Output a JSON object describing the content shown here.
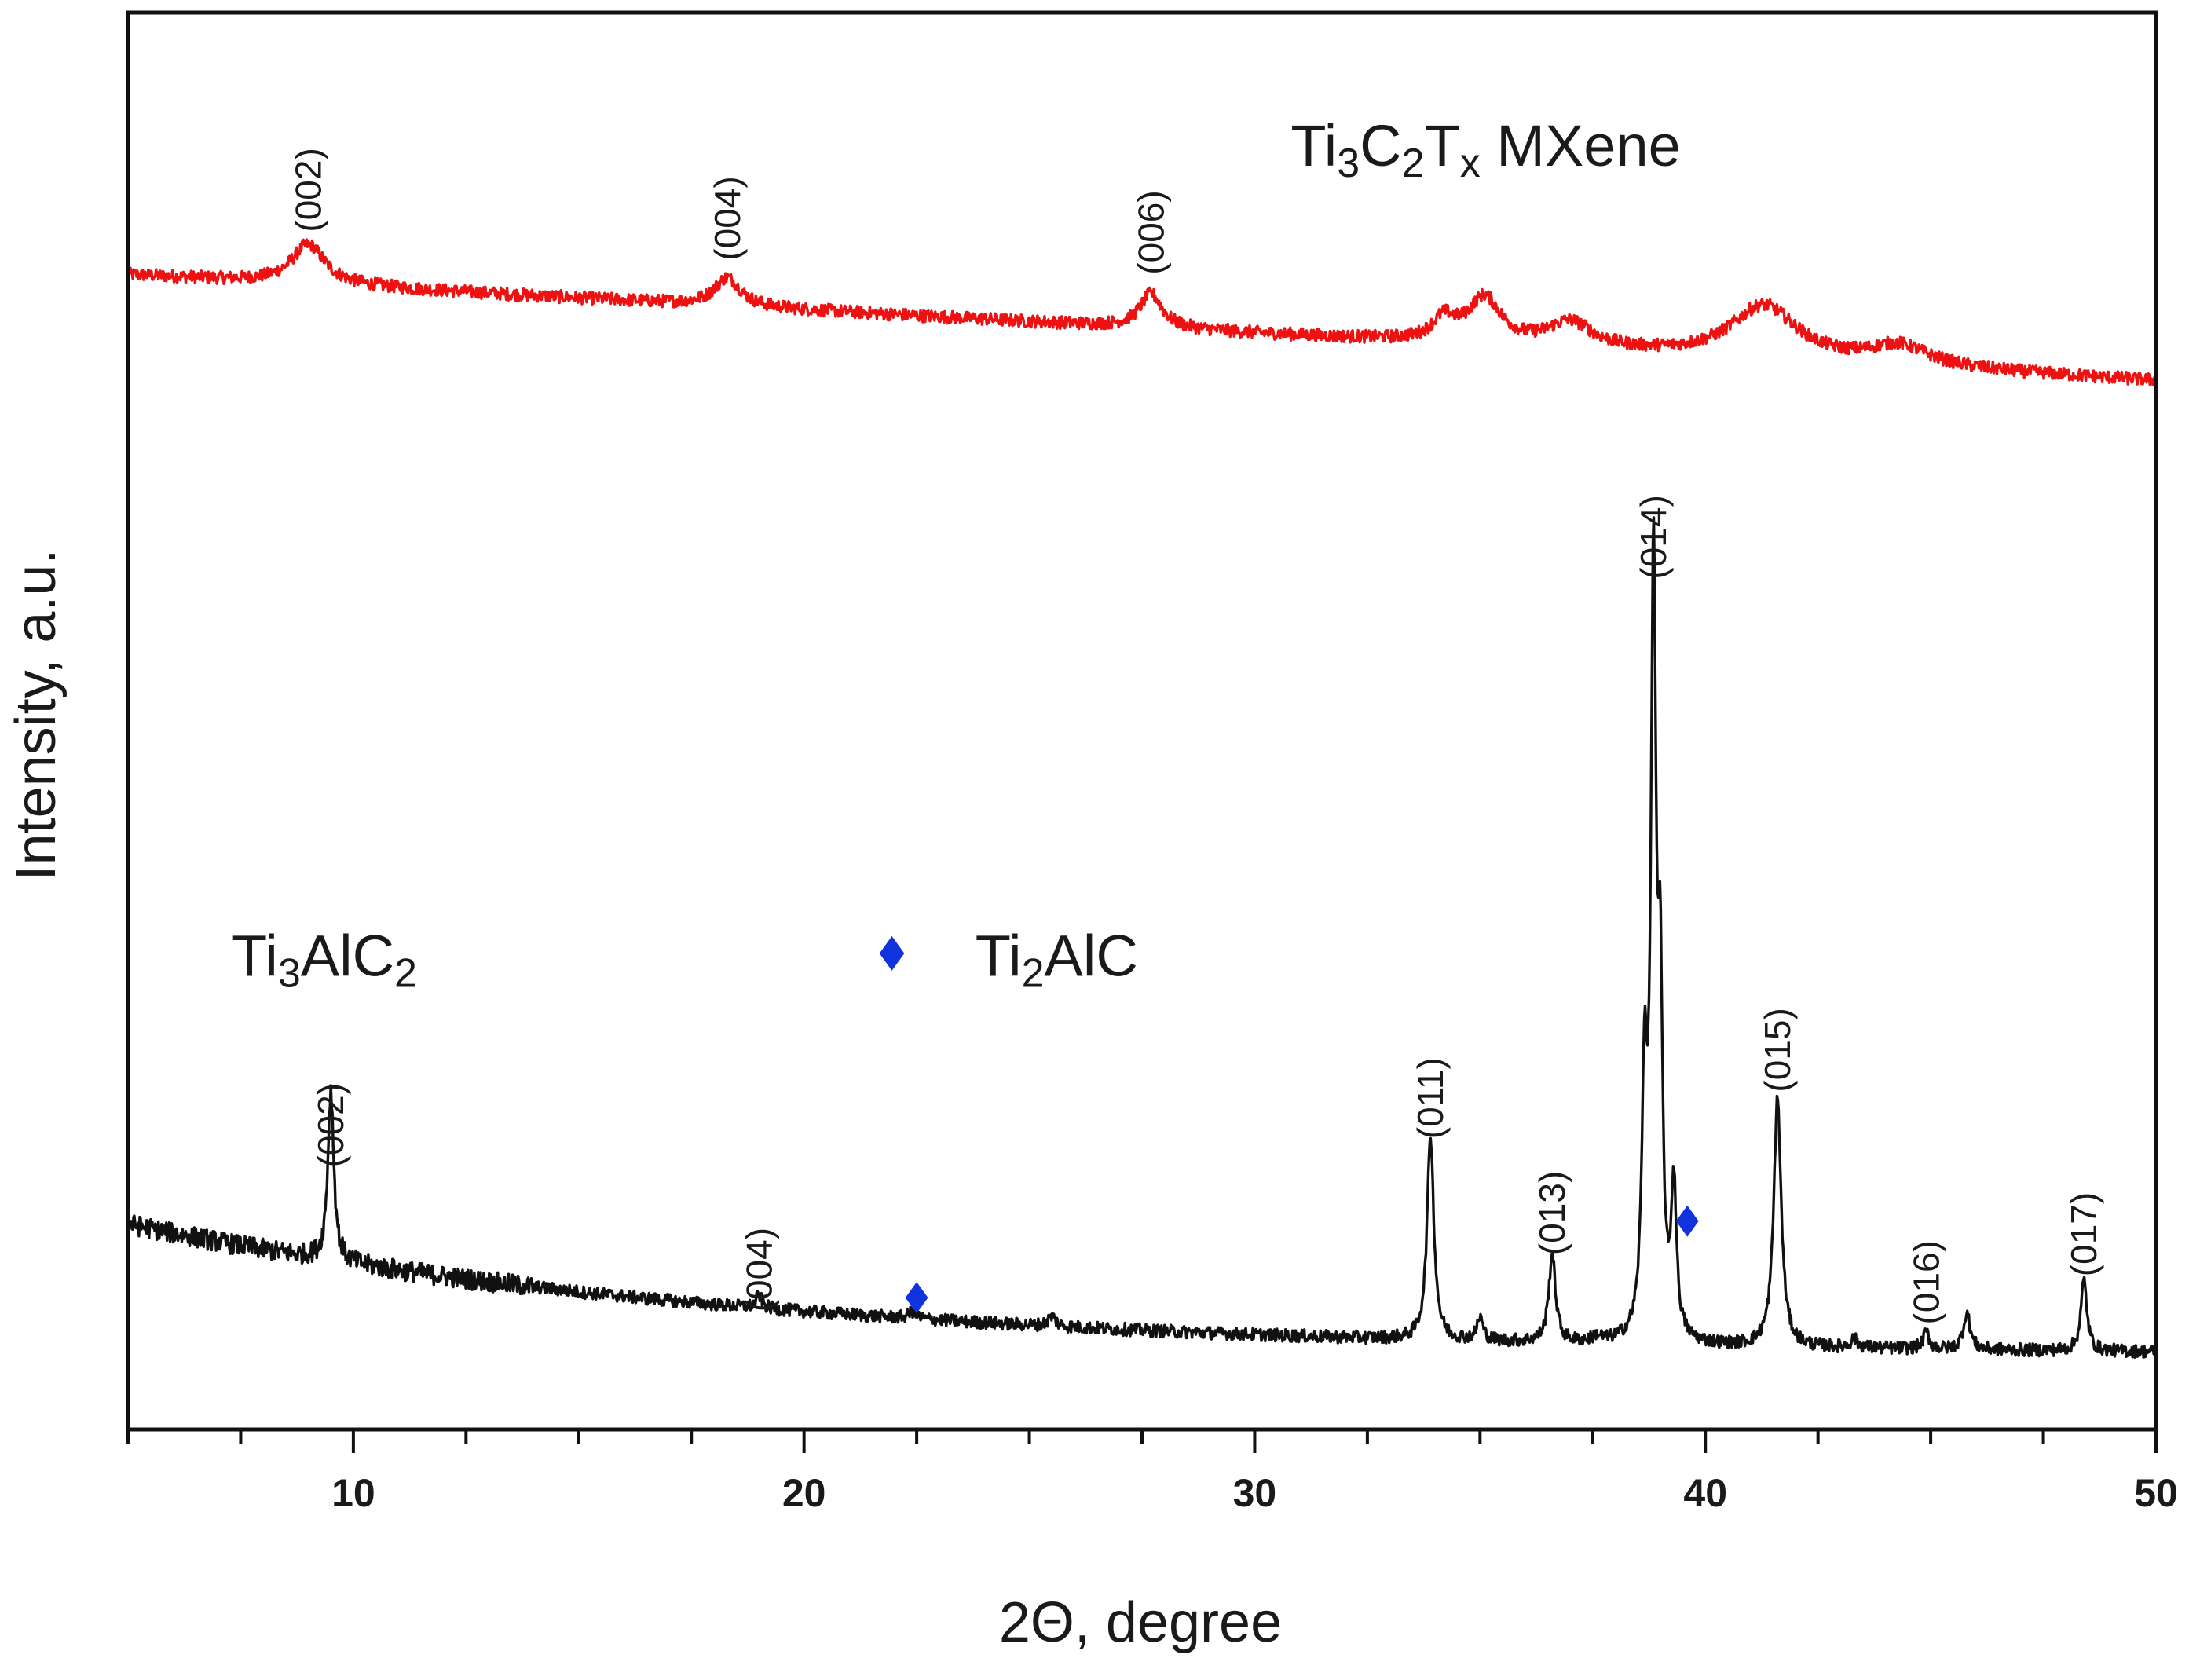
{
  "chart_data": {
    "type": "line",
    "xlabel": "2Θ, degree",
    "ylabel": "Intensity, a.u.",
    "xlim": [
      5,
      50
    ],
    "ylim": [
      0,
      100
    ],
    "xticks": [
      10,
      20,
      30,
      40,
      50
    ],
    "yticks_shown": false,
    "grid": false,
    "colors": {
      "mxene": "#ee1111",
      "max": "#111111",
      "marker": "#1133dd",
      "axis": "#111111"
    },
    "series": [
      {
        "name": "Ti3C2Tx MXene",
        "label_parts": [
          [
            "Ti",
            ""
          ],
          [
            "3",
            "sub"
          ],
          [
            "C",
            ""
          ],
          [
            "2",
            "sub"
          ],
          [
            "T",
            ""
          ],
          [
            "x",
            "sub"
          ],
          [
            "  MXene",
            ""
          ]
        ],
        "color": "#ee1111",
        "baseline": {
          "start": 81.5,
          "end": 74.0,
          "curvature": 2.8
        },
        "noise": 0.45,
        "peaks": [
          {
            "x": 9.0,
            "height": 2.8,
            "width": 0.45
          },
          {
            "x": 18.3,
            "height": 2.0,
            "width": 0.35
          },
          {
            "x": 27.7,
            "height": 2.4,
            "width": 0.3
          },
          {
            "x": 34.2,
            "height": 1.5,
            "width": 0.3
          },
          {
            "x": 35.1,
            "height": 3.2,
            "width": 0.45
          },
          {
            "x": 37.0,
            "height": 1.8,
            "width": 0.6
          },
          {
            "x": 41.3,
            "height": 3.8,
            "width": 0.9
          },
          {
            "x": 44.3,
            "height": 1.4,
            "width": 0.8
          }
        ],
        "annotations": [
          {
            "text": "(002)",
            "x": 9.0,
            "y": 84.5
          },
          {
            "text": "(004)",
            "x": 18.3,
            "y": 82.5
          },
          {
            "text": "(006)",
            "x": 27.7,
            "y": 81.5
          }
        ]
      },
      {
        "name": "Ti3AlC2",
        "label_parts": [
          [
            "Ti",
            ""
          ],
          [
            "3",
            "sub"
          ],
          [
            "AlC",
            ""
          ],
          [
            "2",
            "sub"
          ]
        ],
        "color": "#111111",
        "baseline": {
          "start": 14.5,
          "end": 5.1,
          "decay": 3.2
        },
        "noise": 0.45,
        "peaks": [
          {
            "x": 9.5,
            "height": 12.0,
            "width": 0.08
          },
          {
            "x": 19.0,
            "height": 0.9,
            "width": 0.08
          },
          {
            "x": 22.4,
            "height": 0.5,
            "width": 0.1
          },
          {
            "x": 25.5,
            "height": 0.7,
            "width": 0.1
          },
          {
            "x": 33.9,
            "height": 14.5,
            "width": 0.09
          },
          {
            "x": 35.0,
            "height": 1.6,
            "width": 0.08
          },
          {
            "x": 36.6,
            "height": 6.2,
            "width": 0.09
          },
          {
            "x": 37.6,
            "height": 0.4,
            "width": 0.1
          },
          {
            "x": 38.65,
            "height": 17.0,
            "width": 0.07
          },
          {
            "x": 38.85,
            "height": 53.5,
            "width": 0.07
          },
          {
            "x": 39.0,
            "height": 21.0,
            "width": 0.06
          },
          {
            "x": 39.3,
            "height": 10.5,
            "width": 0.07
          },
          {
            "x": 41.6,
            "height": 17.5,
            "width": 0.1
          },
          {
            "x": 43.3,
            "height": 0.6,
            "width": 0.1
          },
          {
            "x": 44.9,
            "height": 1.2,
            "width": 0.08
          },
          {
            "x": 45.8,
            "height": 2.6,
            "width": 0.09
          },
          {
            "x": 48.4,
            "height": 5.0,
            "width": 0.08
          }
        ],
        "annotations": [
          {
            "text": "(002)",
            "x": 9.5,
            "y": 18.5
          },
          {
            "text": "(004)",
            "x": 19.0,
            "y": 8.3
          },
          {
            "text": "(011)",
            "x": 33.9,
            "y": 20.5
          },
          {
            "text": "(013)",
            "x": 36.6,
            "y": 12.3
          },
          {
            "text": "(014)",
            "x": 38.85,
            "y": 60.0
          },
          {
            "text": "(015)",
            "x": 41.6,
            "y": 23.8
          },
          {
            "text": "(016)",
            "x": 44.9,
            "y": 7.4
          },
          {
            "text": "(017)",
            "x": 48.4,
            "y": 10.8
          }
        ]
      }
    ],
    "ti2alc_markers": [
      {
        "x": 22.5,
        "y": 9.3
      },
      {
        "x": 39.6,
        "y": 14.7
      }
    ],
    "legend": {
      "ti3alc2_label": {
        "text": "Ti3AlC2",
        "parts": [
          [
            "Ti",
            ""
          ],
          [
            "3",
            "sub"
          ],
          [
            "AlC",
            ""
          ],
          [
            "2",
            "sub"
          ]
        ],
        "x": 7.3,
        "y": 32.0
      },
      "ti2alc_label": {
        "text": "Ti2AlC",
        "parts": [
          [
            "Ti",
            ""
          ],
          [
            "2",
            "sub"
          ],
          [
            "AlC",
            ""
          ]
        ],
        "x": 23.8,
        "y": 32.0
      },
      "ti2alc_marker": {
        "x": 21.95,
        "y": 33.6
      },
      "mxene_label": {
        "x": 30.8,
        "y": 89.2
      }
    }
  }
}
